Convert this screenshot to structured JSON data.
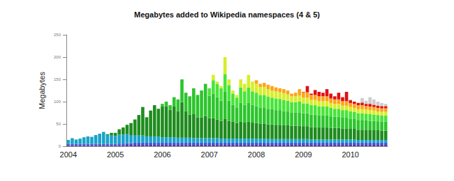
{
  "chart_data": {
    "type": "bar",
    "title": "Megabytes added to Wikipedia namespaces (4 & 5)",
    "y_label": "Megabytes",
    "stacked": true,
    "grid": false,
    "ylim": [
      0,
      250
    ],
    "yticks": [
      0,
      50,
      100,
      150,
      200,
      250
    ],
    "categories": [
      "2004",
      null,
      null,
      null,
      null,
      null,
      null,
      null,
      null,
      null,
      null,
      null,
      "2005",
      null,
      null,
      null,
      null,
      null,
      null,
      null,
      null,
      null,
      null,
      null,
      "2006",
      null,
      null,
      null,
      null,
      null,
      null,
      null,
      null,
      null,
      null,
      null,
      "2007",
      null,
      null,
      null,
      null,
      null,
      null,
      null,
      null,
      null,
      null,
      null,
      "2008",
      null,
      null,
      null,
      null,
      null,
      null,
      null,
      null,
      null,
      null,
      null,
      "2009",
      null,
      null,
      null,
      null,
      null,
      null,
      null,
      null,
      null,
      null,
      null,
      "2010",
      null,
      null,
      null,
      null,
      null,
      null,
      null,
      null,
      null
    ],
    "series": [
      {
        "color": "#5b2c9a",
        "values": [
          2,
          2,
          2,
          2,
          2,
          2,
          2,
          2,
          2,
          2,
          2,
          2,
          2,
          2,
          2,
          3,
          3,
          3,
          3,
          3,
          3,
          3,
          3,
          3,
          3,
          3,
          3,
          3,
          3,
          3,
          3,
          3,
          3,
          3,
          3,
          3,
          3,
          3,
          3,
          3,
          3,
          3,
          3,
          3,
          3,
          3,
          3,
          3,
          3,
          3,
          3,
          3,
          3,
          3,
          3,
          3,
          3,
          3,
          3,
          3,
          3,
          3,
          3,
          3,
          3,
          3,
          3,
          3,
          3,
          3,
          3,
          3,
          3,
          3,
          3,
          3,
          3,
          3,
          3,
          3,
          3,
          3
        ]
      },
      {
        "color": "#3a5bd9",
        "values": [
          3,
          3,
          3,
          3,
          3,
          3,
          3,
          3,
          3,
          3,
          3,
          3,
          3,
          4,
          4,
          4,
          4,
          5,
          5,
          5,
          5,
          5,
          5,
          5,
          5,
          5,
          5,
          5,
          5,
          5,
          5,
          5,
          5,
          5,
          5,
          5,
          5,
          5,
          5,
          5,
          5,
          5,
          5,
          5,
          5,
          5,
          5,
          5,
          5,
          5,
          5,
          5,
          5,
          5,
          5,
          5,
          5,
          5,
          5,
          5,
          5,
          5,
          5,
          5,
          5,
          5,
          5,
          5,
          5,
          5,
          5,
          5,
          5,
          5,
          5,
          5,
          5,
          5,
          5,
          5,
          5,
          5
        ]
      },
      {
        "color": "#1aa3c9",
        "values": [
          9,
          13,
          10,
          12,
          15,
          17,
          16,
          20,
          23,
          27,
          20,
          20,
          18,
          20,
          20,
          20,
          18,
          17,
          16,
          16,
          14,
          14,
          14,
          13,
          12,
          12,
          12,
          12,
          11,
          11,
          11,
          11,
          10,
          10,
          10,
          10,
          10,
          10,
          10,
          9,
          9,
          9,
          9,
          9,
          9,
          9,
          9,
          9,
          9,
          9,
          9,
          8,
          8,
          8,
          8,
          8,
          8,
          8,
          8,
          8,
          8,
          8,
          7,
          7,
          7,
          7,
          7,
          7,
          7,
          7,
          7,
          7,
          7,
          7,
          6,
          6,
          6,
          6,
          6,
          6,
          6,
          6
        ]
      },
      {
        "color": "#1e8c1e",
        "values": [
          0,
          0,
          0,
          0,
          0,
          0,
          0,
          0,
          0,
          0,
          2,
          5,
          7,
          12,
          16,
          21,
          27,
          35,
          46,
          64,
          43,
          58,
          70,
          63,
          70,
          70,
          62,
          70,
          60,
          80,
          60,
          52,
          55,
          47,
          47,
          50,
          45,
          45,
          42,
          40,
          45,
          40,
          38,
          35,
          38,
          36,
          38,
          36,
          35,
          34,
          34,
          33,
          33,
          32,
          32,
          31,
          31,
          30,
          30,
          30,
          29,
          29,
          28,
          28,
          27,
          27,
          27,
          26,
          26,
          26,
          25,
          25,
          24,
          24,
          23,
          23,
          23,
          22,
          22,
          22,
          21,
          21
        ]
      },
      {
        "color": "#2cc52c",
        "values": [
          0,
          0,
          0,
          0,
          0,
          0,
          0,
          0,
          0,
          0,
          0,
          0,
          0,
          0,
          0,
          0,
          0,
          0,
          0,
          0,
          0,
          0,
          0,
          0,
          5,
          10,
          10,
          20,
          26,
          51,
          41,
          41,
          57,
          50,
          60,
          72,
          50,
          55,
          50,
          45,
          60,
          45,
          38,
          35,
          42,
          40,
          42,
          40,
          38,
          36,
          36,
          35,
          34,
          33,
          33,
          32,
          31,
          30,
          30,
          30,
          29,
          29,
          28,
          28,
          27,
          27,
          27,
          26,
          25,
          25,
          24,
          24,
          23,
          22,
          22,
          22,
          21,
          21,
          21,
          20,
          20,
          20
        ]
      },
      {
        "color": "#48e43a",
        "values": [
          0,
          0,
          0,
          0,
          0,
          0,
          0,
          0,
          0,
          0,
          0,
          0,
          0,
          0,
          0,
          0,
          0,
          0,
          0,
          0,
          0,
          0,
          0,
          0,
          0,
          0,
          0,
          0,
          0,
          0,
          0,
          0,
          0,
          0,
          0,
          0,
          17,
          30,
          30,
          28,
          40,
          35,
          25,
          22,
          35,
          30,
          35,
          30,
          30,
          28,
          28,
          27,
          26,
          26,
          25,
          25,
          24,
          23,
          23,
          24,
          22,
          22,
          21,
          21,
          20,
          20,
          20,
          19,
          18,
          18,
          17,
          17,
          16,
          16,
          15,
          15,
          15,
          15,
          14,
          14,
          14,
          14
        ]
      },
      {
        "color": "#d6ee2a",
        "values": [
          0,
          0,
          0,
          0,
          0,
          0,
          0,
          0,
          0,
          0,
          0,
          0,
          0,
          0,
          0,
          0,
          0,
          0,
          0,
          0,
          0,
          0,
          0,
          0,
          0,
          0,
          0,
          0,
          0,
          0,
          0,
          0,
          0,
          0,
          0,
          0,
          0,
          12,
          5,
          5,
          38,
          13,
          7,
          6,
          18,
          17,
          28,
          22,
          20,
          18,
          18,
          17,
          16,
          16,
          15,
          15,
          14,
          13,
          13,
          14,
          13,
          13,
          12,
          12,
          12,
          12,
          12,
          11,
          11,
          11,
          10,
          10,
          10,
          9,
          9,
          9,
          9,
          9,
          9,
          8,
          8,
          8
        ]
      },
      {
        "color": "#ffa31a",
        "values": [
          0,
          0,
          0,
          0,
          0,
          0,
          0,
          0,
          0,
          0,
          0,
          0,
          0,
          0,
          0,
          0,
          0,
          0,
          0,
          0,
          0,
          0,
          0,
          0,
          0,
          0,
          0,
          0,
          0,
          0,
          0,
          0,
          0,
          0,
          0,
          0,
          0,
          0,
          0,
          0,
          0,
          0,
          0,
          0,
          0,
          0,
          0,
          0,
          8,
          7,
          9,
          10,
          10,
          9,
          9,
          9,
          9,
          6,
          8,
          14,
          12,
          12,
          11,
          11,
          11,
          11,
          11,
          10,
          10,
          10,
          10,
          10,
          9,
          9,
          9,
          9,
          8,
          8,
          8,
          8,
          8,
          8
        ]
      },
      {
        "color": "#e01010",
        "values": [
          0,
          0,
          0,
          0,
          0,
          0,
          0,
          0,
          0,
          0,
          0,
          0,
          0,
          0,
          0,
          0,
          0,
          0,
          0,
          0,
          0,
          0,
          0,
          0,
          0,
          0,
          0,
          0,
          0,
          0,
          0,
          0,
          0,
          0,
          0,
          0,
          0,
          0,
          0,
          0,
          0,
          0,
          0,
          0,
          0,
          0,
          0,
          0,
          0,
          0,
          0,
          0,
          0,
          0,
          0,
          0,
          0,
          0,
          0,
          0,
          1,
          14,
          3,
          11,
          10,
          8,
          16,
          11,
          7,
          15,
          9,
          21,
          6,
          5,
          5,
          6,
          5,
          6,
          5,
          5,
          5,
          5
        ]
      },
      {
        "color": "#cccccc",
        "values": [
          0,
          0,
          0,
          0,
          0,
          0,
          0,
          0,
          0,
          0,
          0,
          0,
          0,
          0,
          0,
          0,
          0,
          0,
          0,
          0,
          0,
          0,
          0,
          0,
          0,
          0,
          0,
          0,
          0,
          0,
          0,
          0,
          0,
          0,
          0,
          0,
          0,
          0,
          0,
          0,
          0,
          0,
          0,
          0,
          0,
          0,
          0,
          0,
          0,
          0,
          0,
          0,
          0,
          0,
          0,
          0,
          0,
          0,
          0,
          0,
          0,
          0,
          0,
          0,
          0,
          0,
          0,
          0,
          0,
          0,
          0,
          0,
          2,
          0,
          1,
          10,
          7,
          15,
          12,
          9,
          7,
          5
        ]
      }
    ]
  }
}
